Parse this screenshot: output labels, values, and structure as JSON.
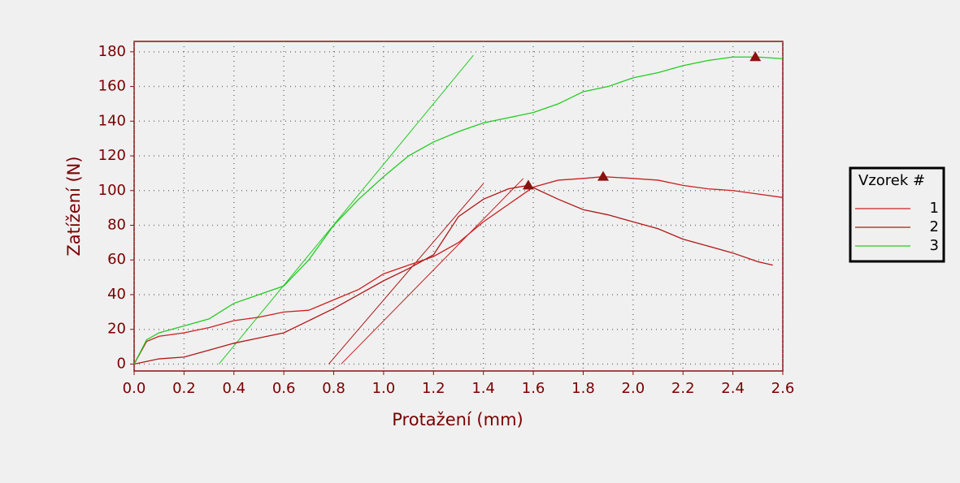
{
  "chart_data": {
    "type": "line",
    "x_label": "Protažení (mm)",
    "y_label": "Zatížení (N)",
    "xlim": [
      0,
      2.6
    ],
    "ylim": [
      -4,
      186
    ],
    "xticks": [
      {
        "value": 0,
        "label": "0.0"
      },
      0.2,
      0.4,
      0.6,
      0.8,
      {
        "value": 1,
        "label": "1.0"
      },
      1.2,
      1.4,
      1.6,
      1.8,
      {
        "value": 2,
        "label": "2.0"
      },
      2.2,
      2.4,
      2.6
    ],
    "yticks": [
      0,
      20,
      40,
      60,
      80,
      100,
      120,
      140,
      160,
      180
    ],
    "grid": true,
    "legend_title": "Vzorek #",
    "legend_position": "right",
    "series": [
      {
        "name": "1",
        "color": "#cc1f1f",
        "x": [
          0,
          0.05,
          0.1,
          0.2,
          0.3,
          0.4,
          0.5,
          0.6,
          0.7,
          0.8,
          0.9,
          1.0,
          1.1,
          1.2,
          1.3,
          1.4,
          1.5,
          1.6,
          1.7,
          1.8,
          1.88,
          2.0,
          2.1,
          2.2,
          2.3,
          2.4,
          2.5,
          2.6
        ],
        "values": [
          0,
          13,
          16,
          18,
          21,
          25,
          27,
          30,
          31,
          37,
          43,
          52,
          57,
          62,
          70,
          82,
          92,
          102,
          106,
          107,
          108,
          107,
          106,
          103,
          101,
          100,
          98,
          96
        ]
      },
      {
        "name": "2",
        "color": "#b01818",
        "x": [
          0,
          0.1,
          0.2,
          0.3,
          0.4,
          0.5,
          0.6,
          0.7,
          0.8,
          0.9,
          1.0,
          1.1,
          1.2,
          1.3,
          1.4,
          1.5,
          1.58,
          1.7,
          1.8,
          1.9,
          2.0,
          2.1,
          2.2,
          2.3,
          2.4,
          2.5,
          2.56
        ],
        "values": [
          0,
          3,
          4,
          8,
          12,
          15,
          18,
          25,
          32,
          40,
          48,
          55,
          63,
          85,
          95,
          101,
          103,
          95,
          89,
          86,
          82,
          78,
          72,
          68,
          64,
          59,
          57
        ]
      },
      {
        "name": "3",
        "color": "#22cc22",
        "x": [
          0,
          0.05,
          0.1,
          0.2,
          0.3,
          0.4,
          0.5,
          0.6,
          0.7,
          0.8,
          0.9,
          1.0,
          1.1,
          1.2,
          1.3,
          1.4,
          1.5,
          1.6,
          1.7,
          1.8,
          1.9,
          2.0,
          2.1,
          2.2,
          2.3,
          2.4,
          2.5,
          2.6
        ],
        "values": [
          0,
          14,
          18,
          22,
          26,
          35,
          40,
          45,
          60,
          80,
          95,
          108,
          120,
          128,
          134,
          139,
          142,
          145,
          150,
          157,
          160,
          165,
          168,
          172,
          175,
          177,
          177,
          176
        ]
      }
    ],
    "tangents": [
      {
        "color": "#cc1f1f",
        "x": [
          0.83,
          1.56
        ],
        "values": [
          0,
          107
        ]
      },
      {
        "color": "#b01818",
        "x": [
          0.78,
          1.4
        ],
        "values": [
          0,
          104
        ]
      },
      {
        "color": "#22cc22",
        "x": [
          0.34,
          1.36
        ],
        "values": [
          0,
          178
        ]
      }
    ],
    "peaks": {
      "color": "#8b1010",
      "x": [
        1.88,
        1.58,
        2.49
      ],
      "values": [
        108,
        103,
        177
      ]
    }
  }
}
